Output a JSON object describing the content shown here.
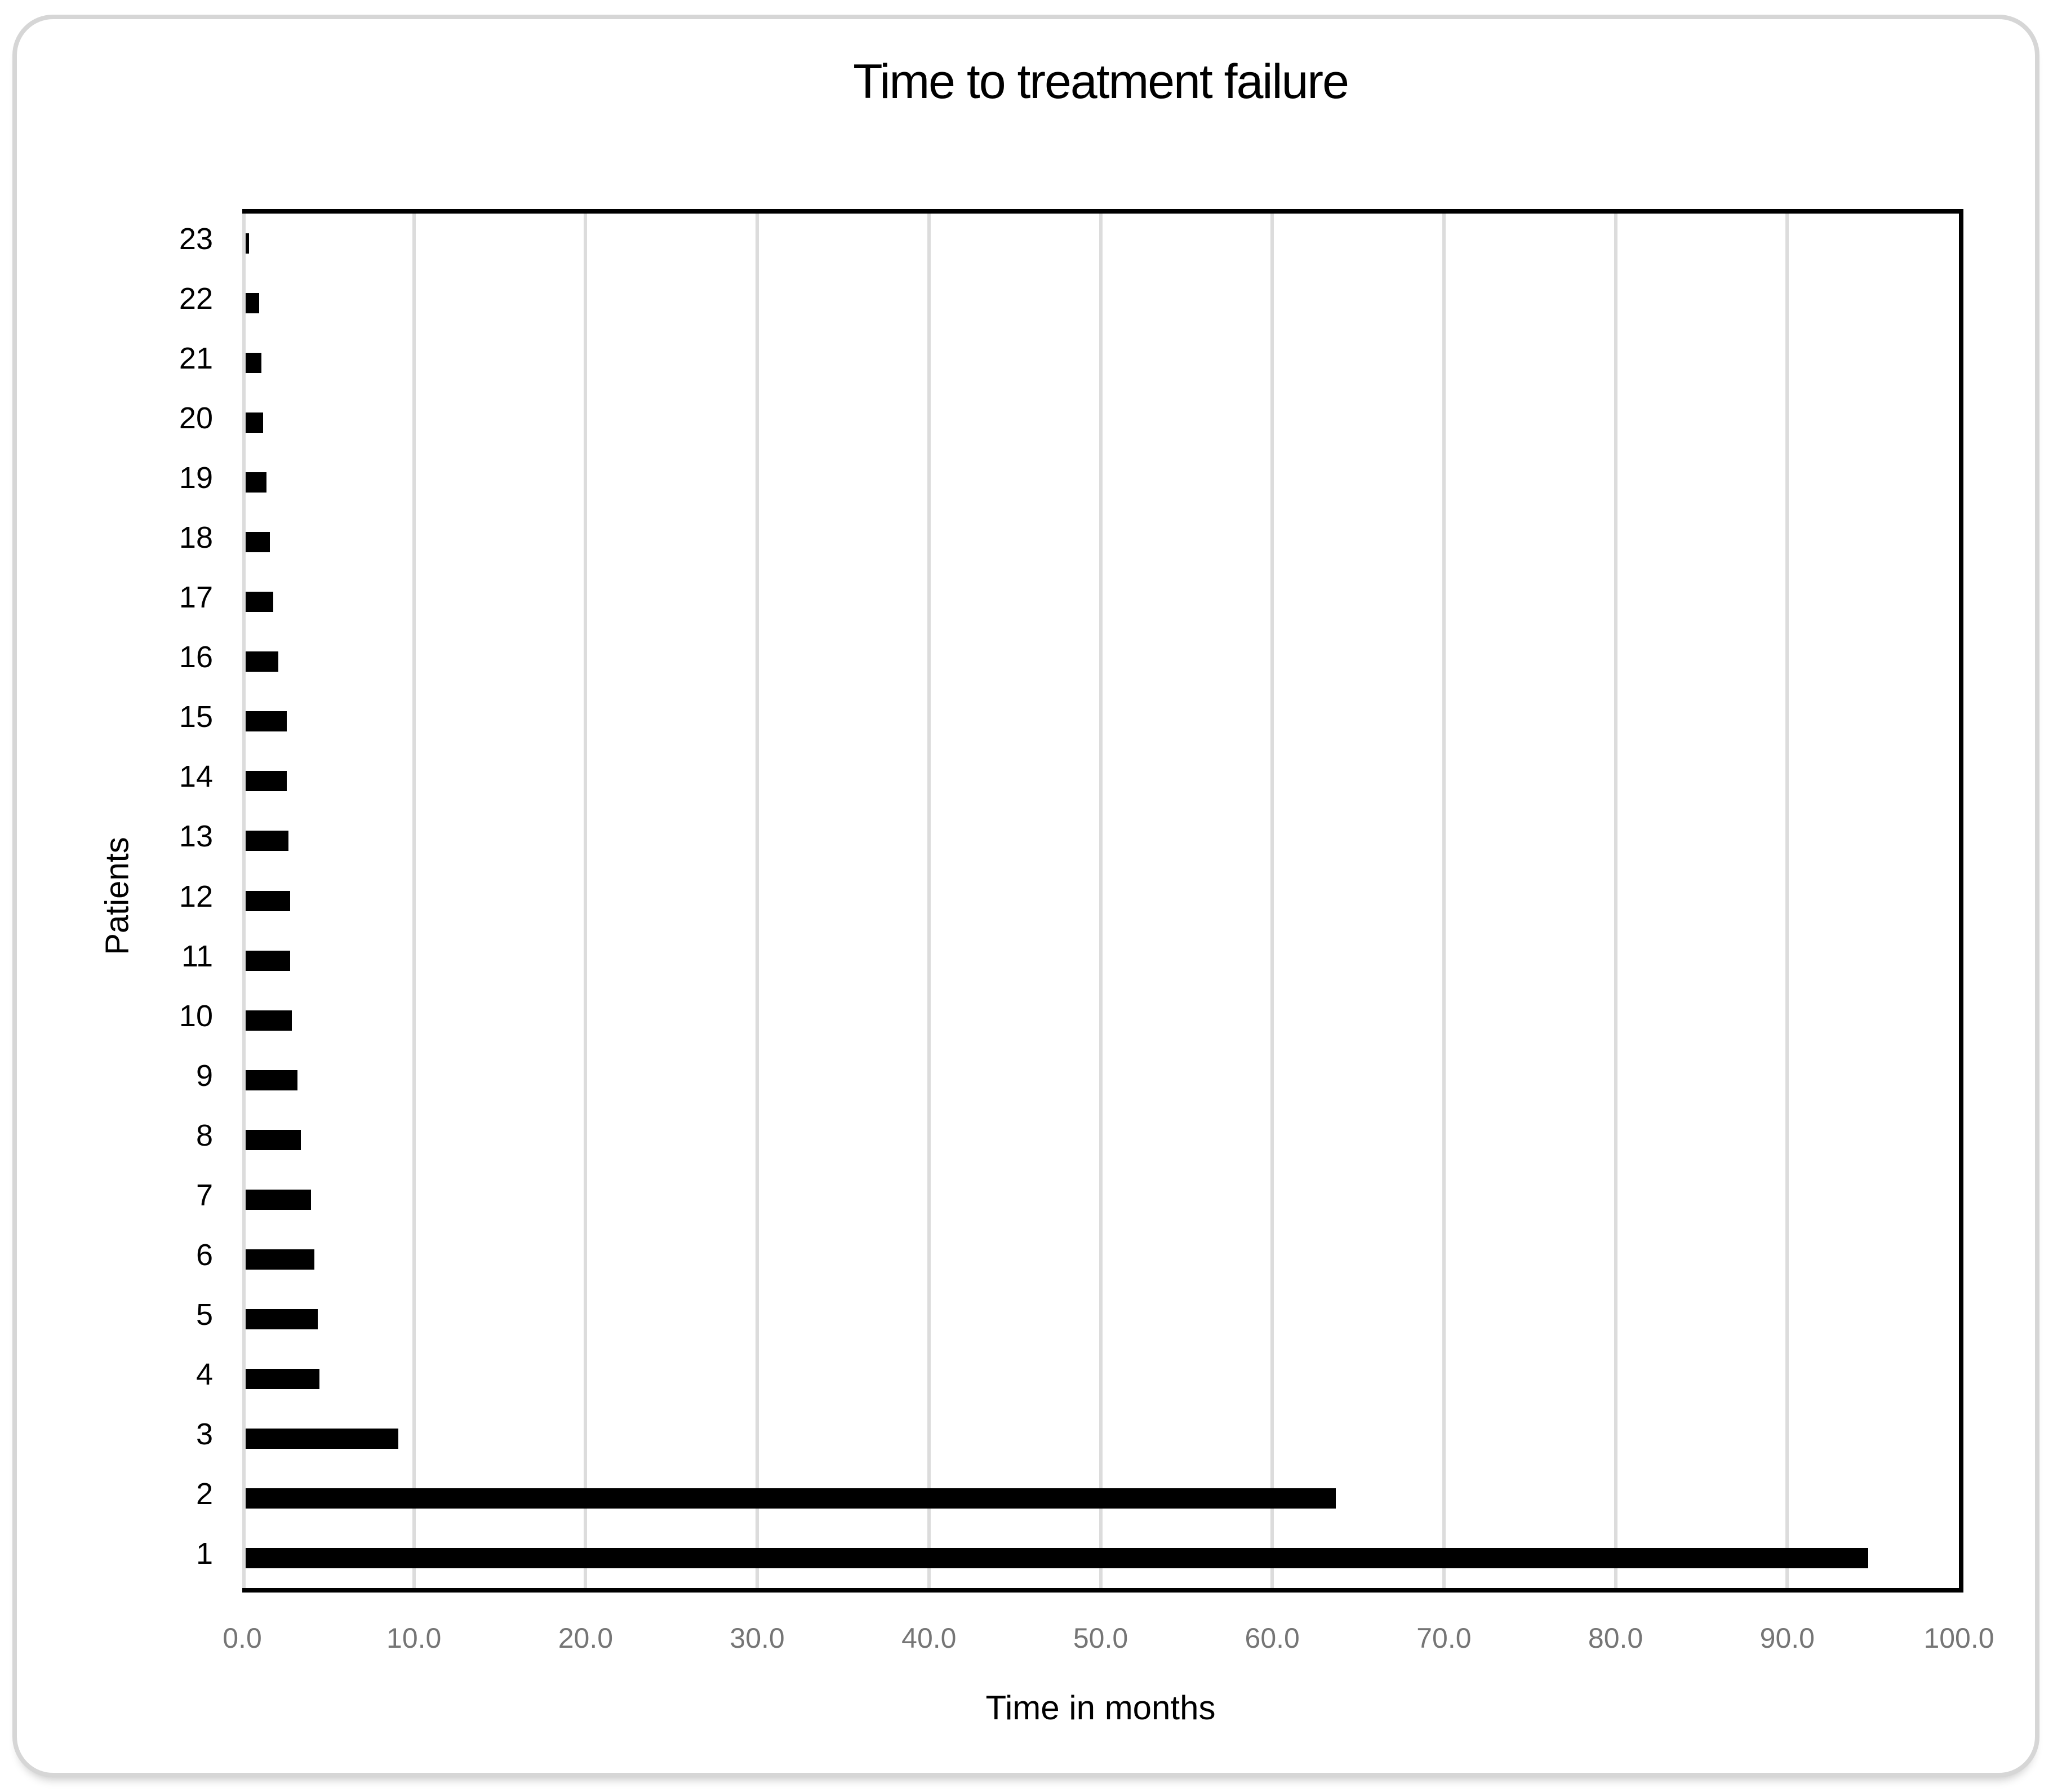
{
  "chart_data": {
    "type": "bar",
    "orientation": "horizontal",
    "title": "Time to treatment failure",
    "xlabel": "Time in months",
    "ylabel": "Patients",
    "categories": [
      23,
      22,
      21,
      20,
      19,
      18,
      17,
      16,
      15,
      14,
      13,
      12,
      11,
      10,
      9,
      8,
      7,
      6,
      5,
      4,
      3,
      2,
      1
    ],
    "values": [
      0.4,
      1.0,
      1.1,
      1.2,
      1.4,
      1.6,
      1.8,
      2.1,
      2.6,
      2.6,
      2.7,
      2.8,
      2.8,
      2.9,
      3.2,
      3.4,
      4.0,
      4.2,
      4.4,
      4.5,
      9.1,
      63.7,
      94.7
    ],
    "xlim": [
      0,
      100
    ],
    "xtick_step": 10,
    "xtick_labels": [
      "0.0",
      "10.0",
      "20.0",
      "30.0",
      "40.0",
      "50.0",
      "60.0",
      "70.0",
      "80.0",
      "90.0",
      "100.0"
    ],
    "grid": true,
    "legend": false,
    "bar_color": "#000000",
    "gridline_color": "#dcdcdc",
    "axis_line_color": "#000000",
    "xtick_label_color": "#757575",
    "ytick_label_color": "#000000"
  }
}
